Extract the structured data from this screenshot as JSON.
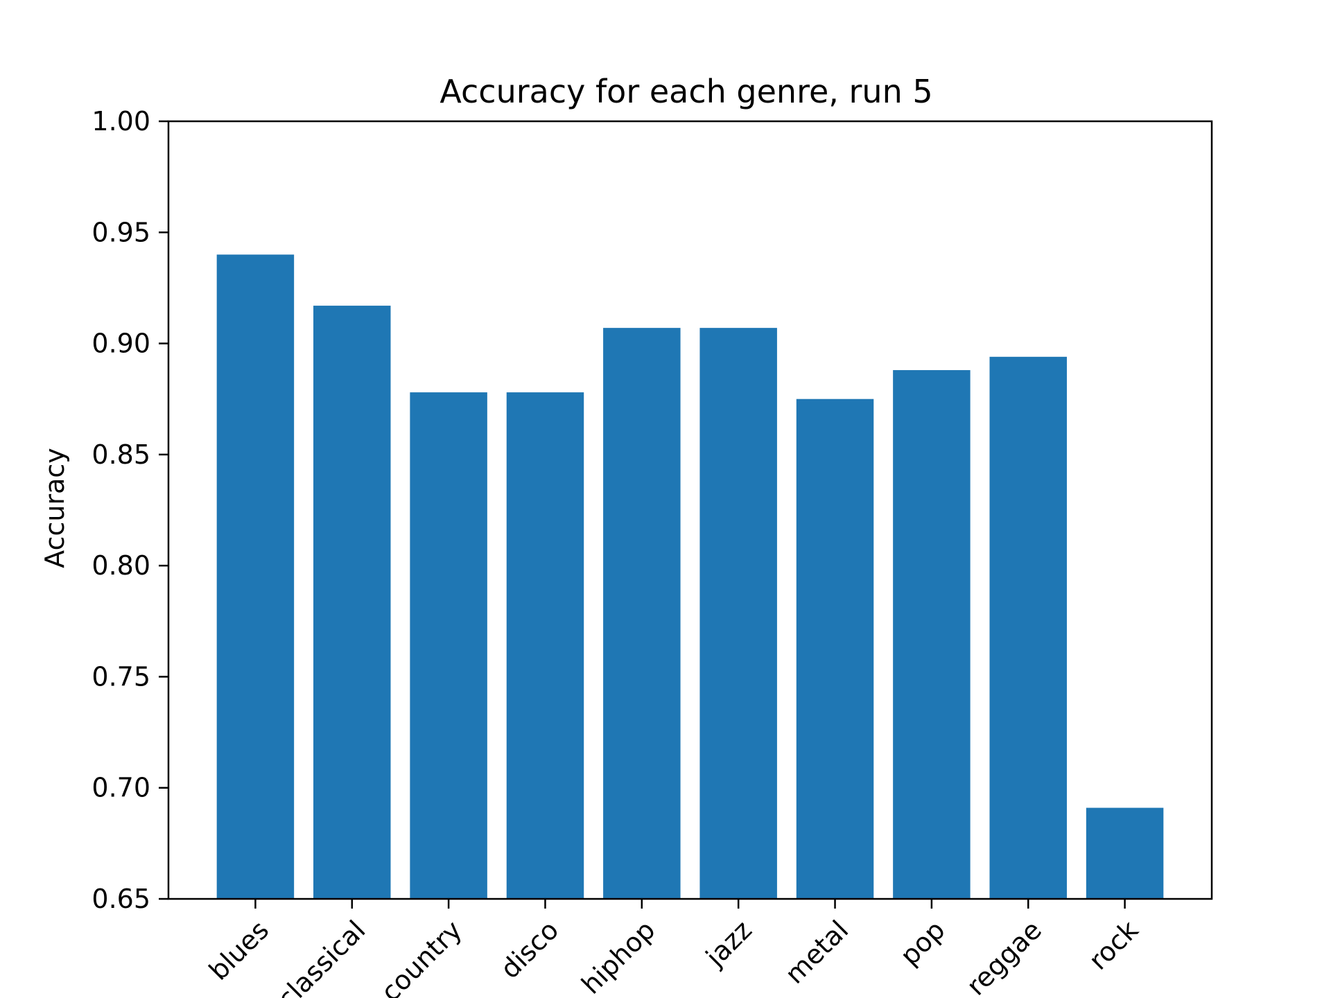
{
  "chart_data": {
    "type": "bar",
    "title": "Accuracy for each genre, run 5",
    "xlabel": "",
    "ylabel": "Accuracy",
    "categories": [
      "blues",
      "classical",
      "country",
      "disco",
      "hiphop",
      "jazz",
      "metal",
      "pop",
      "reggae",
      "rock"
    ],
    "values": [
      0.94,
      0.917,
      0.878,
      0.878,
      0.907,
      0.907,
      0.875,
      0.888,
      0.894,
      0.691
    ],
    "ylim": [
      0.65,
      1.0
    ],
    "yticks": [
      "0.65",
      "0.70",
      "0.75",
      "0.80",
      "0.85",
      "0.90",
      "0.95",
      "1.00"
    ],
    "bar_color": "#1f77b4",
    "grid": false,
    "legend": "none"
  }
}
